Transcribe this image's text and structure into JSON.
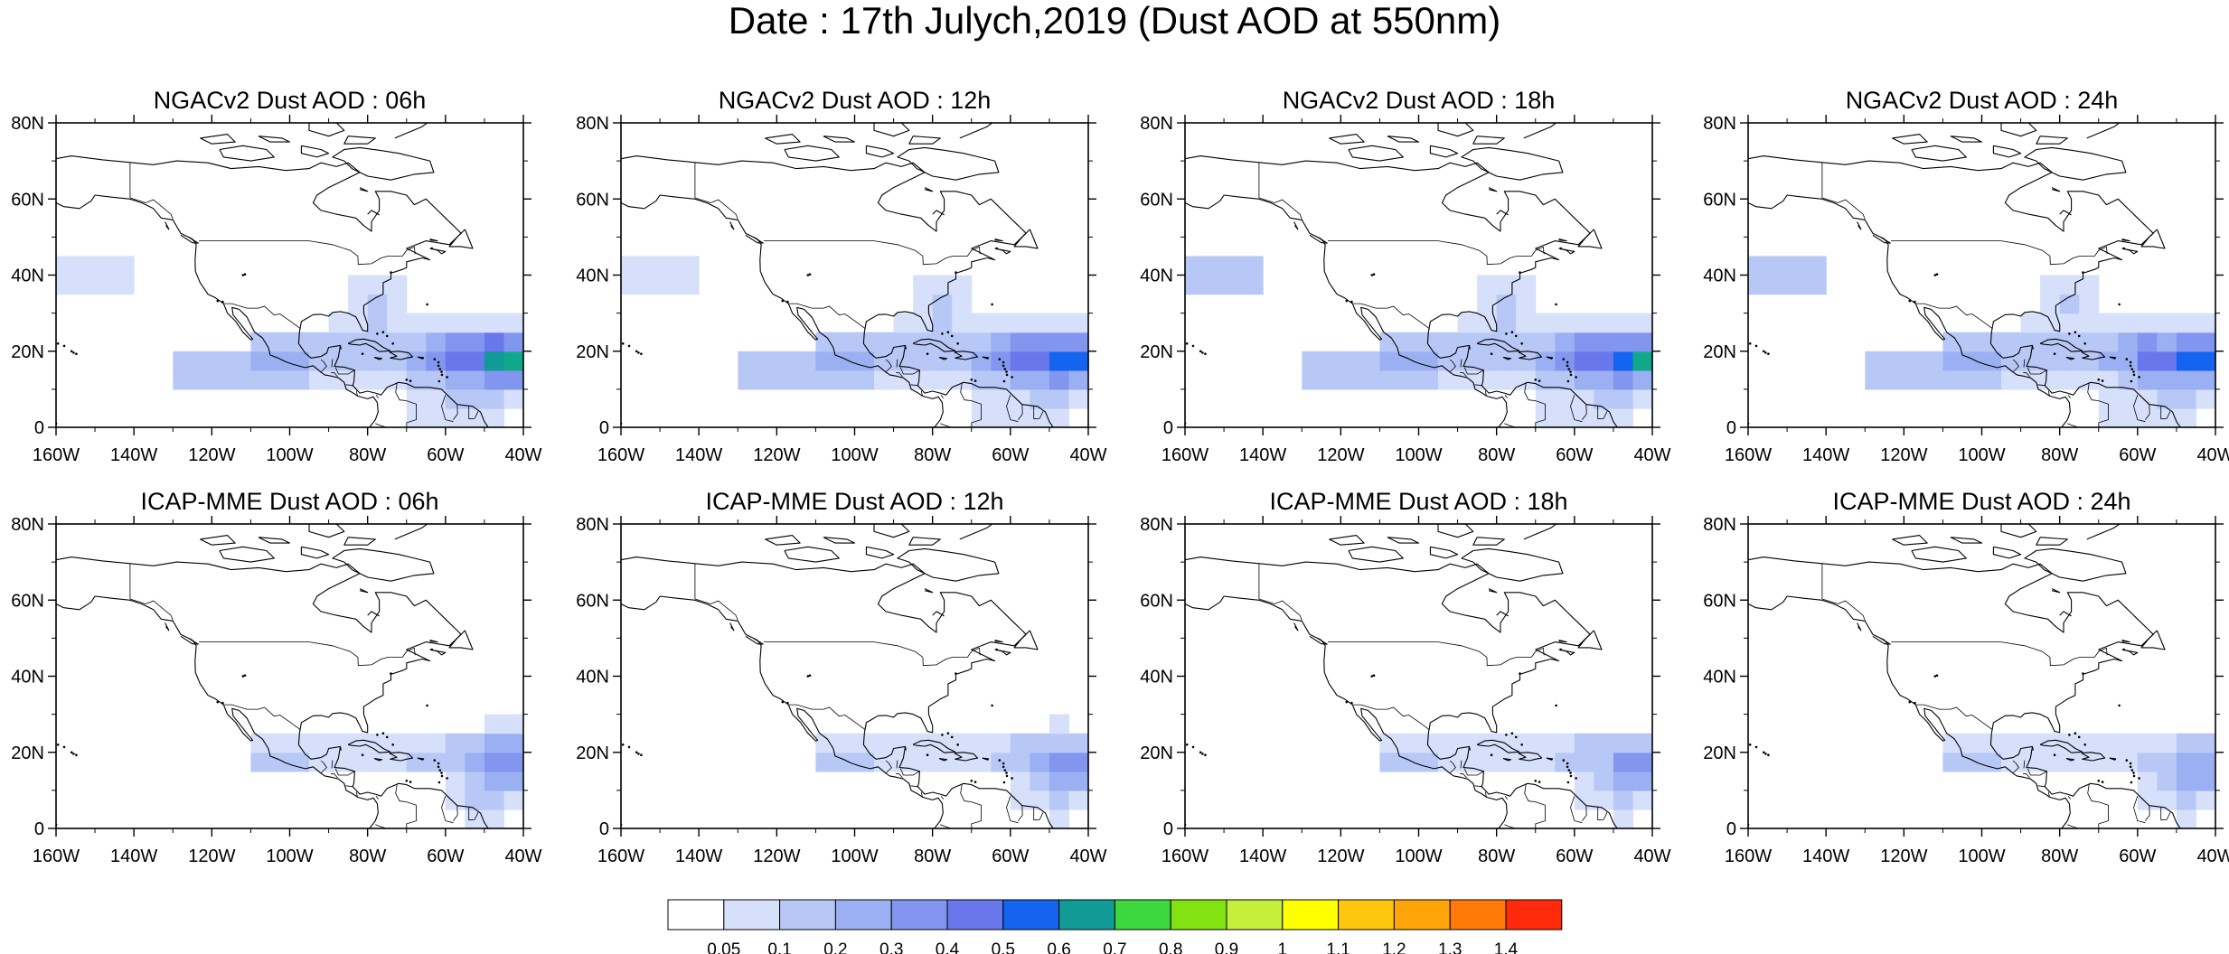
{
  "title": "Date : 17th Julych,2019 (Dust AOD at 550nm)",
  "panels": [
    {
      "title": "NGACv2 Dust AOD : 06h",
      "intensity": 1.0,
      "peak": "green"
    },
    {
      "title": "NGACv2 Dust AOD : 12h",
      "intensity": 0.95,
      "peak": "none"
    },
    {
      "title": "NGACv2 Dust AOD : 18h",
      "intensity": 0.95,
      "peak": "green"
    },
    {
      "title": "NGACv2 Dust AOD : 24h",
      "intensity": 0.9,
      "peak": "none"
    },
    {
      "title": "ICAP-MME Dust AOD : 06h",
      "intensity": 0.6,
      "peak": "none"
    },
    {
      "title": "ICAP-MME Dust AOD : 12h",
      "intensity": 0.55,
      "peak": "none"
    },
    {
      "title": "ICAP-MME Dust AOD : 18h",
      "intensity": 0.55,
      "peak": "none"
    },
    {
      "title": "ICAP-MME Dust AOD : 24h",
      "intensity": 0.5,
      "peak": "none"
    }
  ],
  "axes": {
    "y_ticks": [
      "80N",
      "60N",
      "40N",
      "20N",
      "0"
    ],
    "x_ticks": [
      "160W",
      "140W",
      "120W",
      "100W",
      "80W",
      "60W",
      "40W"
    ],
    "lon_range": [
      -160,
      -40
    ],
    "lat_range": [
      0,
      80
    ]
  },
  "colorbar": {
    "labels": [
      "0.05",
      "0.1",
      "0.2",
      "0.3",
      "0.4",
      "0.5",
      "0.6",
      "0.7",
      "0.8",
      "0.9",
      "1",
      "1.1",
      "1.2",
      "1.3",
      "1.4"
    ],
    "colors": [
      "#ffffff",
      "#d6e0fb",
      "#b8c8f6",
      "#9bb0f2",
      "#8296ef",
      "#6877ec",
      "#1464f0",
      "#109b96",
      "#3dd83d",
      "#82e212",
      "#c4f03b",
      "#ffff00",
      "#ffc60e",
      "#ffa409",
      "#ff7a09",
      "#ff2a0a"
    ]
  }
}
